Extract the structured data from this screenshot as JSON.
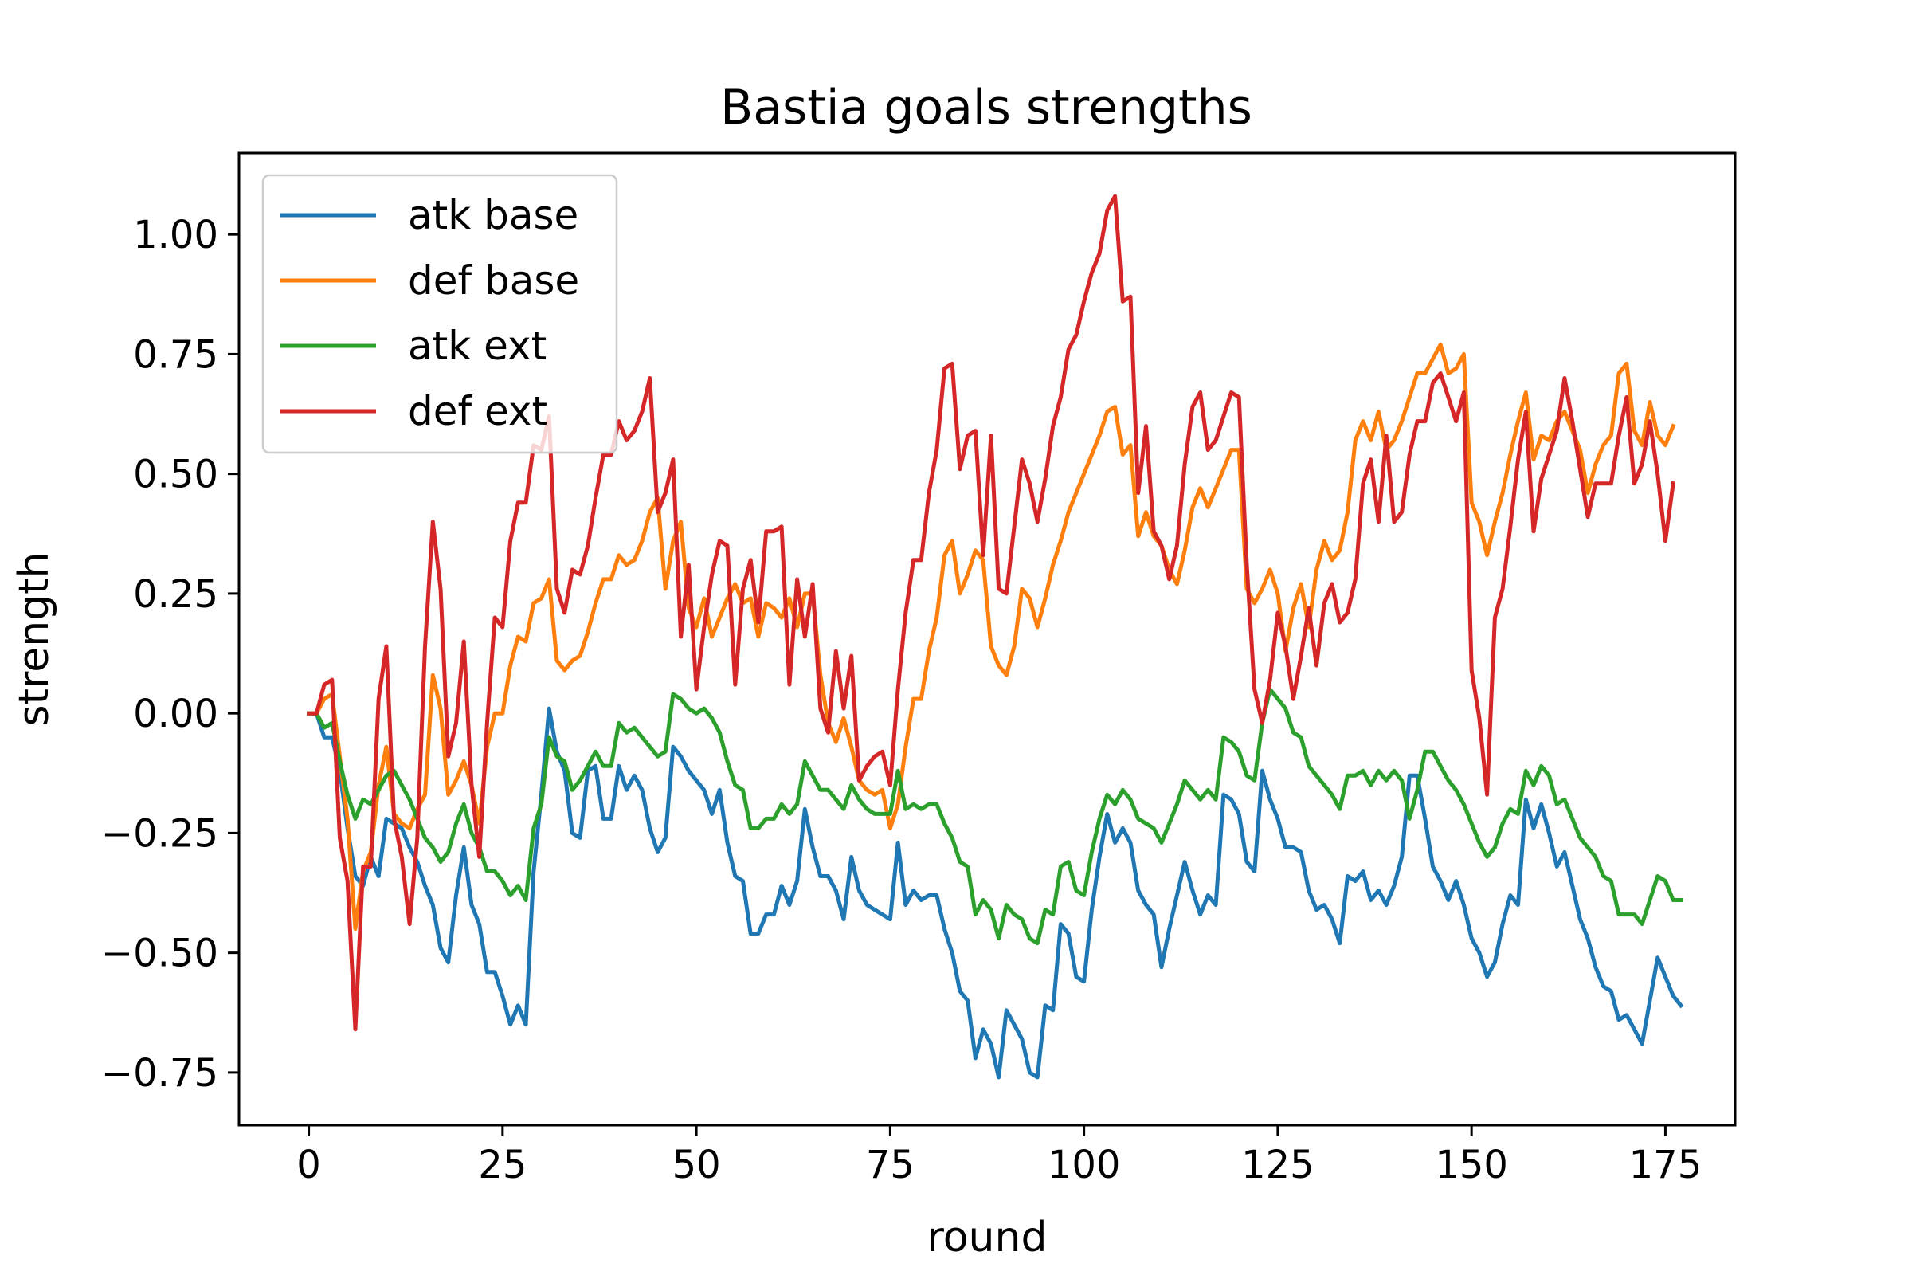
{
  "chart_data": {
    "type": "line",
    "title": "Bastia goals strengths",
    "xlabel": "round",
    "ylabel": "strength",
    "xlim": [
      -9,
      184
    ],
    "ylim": [
      -0.86,
      1.17
    ],
    "xticks": [
      0,
      25,
      50,
      75,
      100,
      125,
      150,
      175
    ],
    "xtick_labels": [
      "0",
      "25",
      "50",
      "75",
      "100",
      "125",
      "150",
      "175"
    ],
    "yticks": [
      -0.75,
      -0.5,
      -0.25,
      0.0,
      0.25,
      0.5,
      0.75,
      1.0
    ],
    "ytick_labels": [
      "−0.75",
      "−0.50",
      "−0.25",
      "0.00",
      "0.25",
      "0.50",
      "0.75",
      "1.00"
    ],
    "grid": false,
    "legend_position": "upper-left",
    "x_start": 0,
    "x_step": 1,
    "series": [
      {
        "name": "atk base",
        "color": "#1f77b4",
        "values": [
          0.0,
          0.0,
          -0.05,
          -0.05,
          -0.12,
          -0.24,
          -0.34,
          -0.36,
          -0.3,
          -0.34,
          -0.22,
          -0.23,
          -0.24,
          -0.28,
          -0.31,
          -0.36,
          -0.4,
          -0.49,
          -0.52,
          -0.38,
          -0.28,
          -0.4,
          -0.44,
          -0.54,
          -0.54,
          -0.59,
          -0.65,
          -0.61,
          -0.65,
          -0.33,
          -0.17,
          0.01,
          -0.08,
          -0.12,
          -0.25,
          -0.26,
          -0.12,
          -0.11,
          -0.22,
          -0.22,
          -0.11,
          -0.16,
          -0.13,
          -0.16,
          -0.24,
          -0.29,
          -0.26,
          -0.07,
          -0.09,
          -0.12,
          -0.14,
          -0.16,
          -0.21,
          -0.16,
          -0.27,
          -0.34,
          -0.35,
          -0.46,
          -0.46,
          -0.42,
          -0.42,
          -0.36,
          -0.4,
          -0.35,
          -0.2,
          -0.28,
          -0.34,
          -0.34,
          -0.37,
          -0.43,
          -0.3,
          -0.37,
          -0.4,
          -0.41,
          -0.42,
          -0.43,
          -0.27,
          -0.4,
          -0.37,
          -0.39,
          -0.38,
          -0.38,
          -0.45,
          -0.5,
          -0.58,
          -0.6,
          -0.72,
          -0.66,
          -0.69,
          -0.76,
          -0.62,
          -0.65,
          -0.68,
          -0.75,
          -0.76,
          -0.61,
          -0.62,
          -0.44,
          -0.46,
          -0.55,
          -0.56,
          -0.41,
          -0.3,
          -0.21,
          -0.27,
          -0.24,
          -0.27,
          -0.37,
          -0.4,
          -0.42,
          -0.53,
          -0.45,
          -0.38,
          -0.31,
          -0.37,
          -0.42,
          -0.38,
          -0.4,
          -0.17,
          -0.18,
          -0.21,
          -0.31,
          -0.33,
          -0.12,
          -0.18,
          -0.22,
          -0.28,
          -0.28,
          -0.29,
          -0.37,
          -0.41,
          -0.4,
          -0.43,
          -0.48,
          -0.34,
          -0.35,
          -0.33,
          -0.39,
          -0.37,
          -0.4,
          -0.36,
          -0.3,
          -0.13,
          -0.13,
          -0.22,
          -0.32,
          -0.35,
          -0.39,
          -0.35,
          -0.4,
          -0.47,
          -0.5,
          -0.55,
          -0.52,
          -0.44,
          -0.38,
          -0.4,
          -0.18,
          -0.24,
          -0.19,
          -0.25,
          -0.32,
          -0.29,
          -0.36,
          -0.43,
          -0.47,
          -0.53,
          -0.57,
          -0.58,
          -0.64,
          -0.63,
          -0.66,
          -0.69,
          -0.6,
          -0.51,
          -0.55,
          -0.59,
          -0.61
        ]
      },
      {
        "name": "def base",
        "color": "#ff7f0e",
        "values": [
          0.0,
          0.0,
          0.03,
          0.04,
          -0.09,
          -0.22,
          -0.45,
          -0.33,
          -0.29,
          -0.15,
          -0.07,
          -0.21,
          -0.23,
          -0.24,
          -0.2,
          -0.17,
          0.08,
          0.01,
          -0.17,
          -0.14,
          -0.1,
          -0.15,
          -0.23,
          -0.07,
          0.0,
          0.0,
          0.1,
          0.16,
          0.15,
          0.23,
          0.24,
          0.28,
          0.11,
          0.09,
          0.11,
          0.12,
          0.17,
          0.23,
          0.28,
          0.28,
          0.33,
          0.31,
          0.32,
          0.36,
          0.42,
          0.45,
          0.26,
          0.36,
          0.4,
          0.22,
          0.18,
          0.24,
          0.16,
          0.2,
          0.24,
          0.27,
          0.23,
          0.24,
          0.16,
          0.23,
          0.22,
          0.2,
          0.24,
          0.18,
          0.25,
          0.25,
          0.08,
          -0.02,
          -0.06,
          -0.01,
          -0.07,
          -0.14,
          -0.16,
          -0.17,
          -0.16,
          -0.24,
          -0.19,
          -0.07,
          0.03,
          0.03,
          0.13,
          0.2,
          0.33,
          0.36,
          0.25,
          0.29,
          0.34,
          0.32,
          0.14,
          0.1,
          0.08,
          0.14,
          0.26,
          0.24,
          0.18,
          0.24,
          0.31,
          0.36,
          0.42,
          0.46,
          0.5,
          0.54,
          0.58,
          0.63,
          0.64,
          0.54,
          0.56,
          0.37,
          0.42,
          0.37,
          0.35,
          0.3,
          0.27,
          0.34,
          0.43,
          0.47,
          0.43,
          0.47,
          0.51,
          0.55,
          0.55,
          0.26,
          0.23,
          0.26,
          0.3,
          0.25,
          0.13,
          0.22,
          0.27,
          0.18,
          0.3,
          0.36,
          0.32,
          0.34,
          0.42,
          0.57,
          0.61,
          0.57,
          0.63,
          0.55,
          0.57,
          0.61,
          0.66,
          0.71,
          0.71,
          0.74,
          0.77,
          0.71,
          0.72,
          0.75,
          0.44,
          0.4,
          0.33,
          0.4,
          0.46,
          0.54,
          0.61,
          0.67,
          0.53,
          0.58,
          0.57,
          0.61,
          0.63,
          0.59,
          0.55,
          0.46,
          0.52,
          0.56,
          0.58,
          0.71,
          0.73,
          0.59,
          0.56,
          0.65,
          0.58,
          0.56,
          0.6
        ]
      },
      {
        "name": "atk ext",
        "color": "#2ca02c",
        "values": [
          0.0,
          0.0,
          -0.03,
          -0.02,
          -0.1,
          -0.17,
          -0.22,
          -0.18,
          -0.19,
          -0.16,
          -0.13,
          -0.12,
          -0.15,
          -0.18,
          -0.22,
          -0.26,
          -0.28,
          -0.31,
          -0.29,
          -0.23,
          -0.19,
          -0.25,
          -0.28,
          -0.33,
          -0.33,
          -0.35,
          -0.38,
          -0.36,
          -0.39,
          -0.24,
          -0.19,
          -0.05,
          -0.09,
          -0.1,
          -0.16,
          -0.14,
          -0.11,
          -0.08,
          -0.11,
          -0.11,
          -0.02,
          -0.04,
          -0.03,
          -0.05,
          -0.07,
          -0.09,
          -0.08,
          0.04,
          0.03,
          0.01,
          0.0,
          0.01,
          -0.01,
          -0.04,
          -0.1,
          -0.15,
          -0.16,
          -0.24,
          -0.24,
          -0.22,
          -0.22,
          -0.19,
          -0.21,
          -0.19,
          -0.1,
          -0.13,
          -0.16,
          -0.16,
          -0.18,
          -0.2,
          -0.15,
          -0.18,
          -0.2,
          -0.21,
          -0.21,
          -0.21,
          -0.12,
          -0.2,
          -0.19,
          -0.2,
          -0.19,
          -0.19,
          -0.23,
          -0.26,
          -0.31,
          -0.32,
          -0.42,
          -0.39,
          -0.41,
          -0.47,
          -0.4,
          -0.42,
          -0.43,
          -0.47,
          -0.48,
          -0.41,
          -0.42,
          -0.32,
          -0.31,
          -0.37,
          -0.38,
          -0.29,
          -0.22,
          -0.17,
          -0.19,
          -0.16,
          -0.18,
          -0.22,
          -0.23,
          -0.24,
          -0.27,
          -0.23,
          -0.19,
          -0.14,
          -0.16,
          -0.18,
          -0.16,
          -0.18,
          -0.05,
          -0.06,
          -0.08,
          -0.13,
          -0.14,
          -0.02,
          0.05,
          0.03,
          0.01,
          -0.04,
          -0.05,
          -0.11,
          -0.13,
          -0.15,
          -0.17,
          -0.2,
          -0.13,
          -0.13,
          -0.12,
          -0.15,
          -0.12,
          -0.14,
          -0.12,
          -0.14,
          -0.22,
          -0.16,
          -0.08,
          -0.08,
          -0.11,
          -0.14,
          -0.16,
          -0.19,
          -0.23,
          -0.27,
          -0.3,
          -0.28,
          -0.23,
          -0.2,
          -0.21,
          -0.12,
          -0.15,
          -0.11,
          -0.13,
          -0.19,
          -0.18,
          -0.22,
          -0.26,
          -0.28,
          -0.3,
          -0.34,
          -0.35,
          -0.42,
          -0.42,
          -0.42,
          -0.44,
          -0.39,
          -0.34,
          -0.35,
          -0.39,
          -0.39
        ]
      },
      {
        "name": "def ext",
        "color": "#d62728",
        "values": [
          0.0,
          0.0,
          0.06,
          0.07,
          -0.26,
          -0.35,
          -0.66,
          -0.32,
          -0.32,
          0.03,
          0.14,
          -0.22,
          -0.3,
          -0.44,
          -0.26,
          0.14,
          0.4,
          0.26,
          -0.09,
          -0.02,
          0.15,
          -0.15,
          -0.3,
          -0.02,
          0.2,
          0.18,
          0.36,
          0.44,
          0.44,
          0.56,
          0.55,
          0.62,
          0.26,
          0.21,
          0.3,
          0.29,
          0.35,
          0.45,
          0.54,
          0.54,
          0.61,
          0.57,
          0.59,
          0.63,
          0.7,
          0.42,
          0.46,
          0.53,
          0.16,
          0.31,
          0.05,
          0.18,
          0.29,
          0.36,
          0.35,
          0.06,
          0.26,
          0.32,
          0.19,
          0.38,
          0.38,
          0.39,
          0.06,
          0.28,
          0.16,
          0.27,
          0.01,
          -0.04,
          0.13,
          0.01,
          0.12,
          -0.14,
          -0.11,
          -0.09,
          -0.08,
          -0.15,
          0.05,
          0.21,
          0.32,
          0.32,
          0.46,
          0.55,
          0.72,
          0.73,
          0.51,
          0.58,
          0.59,
          0.33,
          0.58,
          0.26,
          0.25,
          0.39,
          0.53,
          0.48,
          0.4,
          0.49,
          0.6,
          0.66,
          0.76,
          0.79,
          0.86,
          0.92,
          0.96,
          1.05,
          1.08,
          0.86,
          0.87,
          0.46,
          0.6,
          0.38,
          0.35,
          0.28,
          0.35,
          0.52,
          0.64,
          0.67,
          0.55,
          0.57,
          0.62,
          0.67,
          0.66,
          0.31,
          0.05,
          -0.02,
          0.07,
          0.21,
          0.14,
          0.03,
          0.12,
          0.22,
          0.1,
          0.23,
          0.27,
          0.19,
          0.21,
          0.28,
          0.48,
          0.53,
          0.4,
          0.58,
          0.4,
          0.42,
          0.54,
          0.61,
          0.61,
          0.69,
          0.71,
          0.66,
          0.61,
          0.67,
          0.09,
          -0.01,
          -0.17,
          0.2,
          0.26,
          0.39,
          0.53,
          0.63,
          0.38,
          0.49,
          0.54,
          0.59,
          0.7,
          0.61,
          0.51,
          0.41,
          0.48,
          0.48,
          0.48,
          0.58,
          0.66,
          0.48,
          0.52,
          0.61,
          0.5,
          0.36,
          0.48
        ]
      }
    ]
  }
}
